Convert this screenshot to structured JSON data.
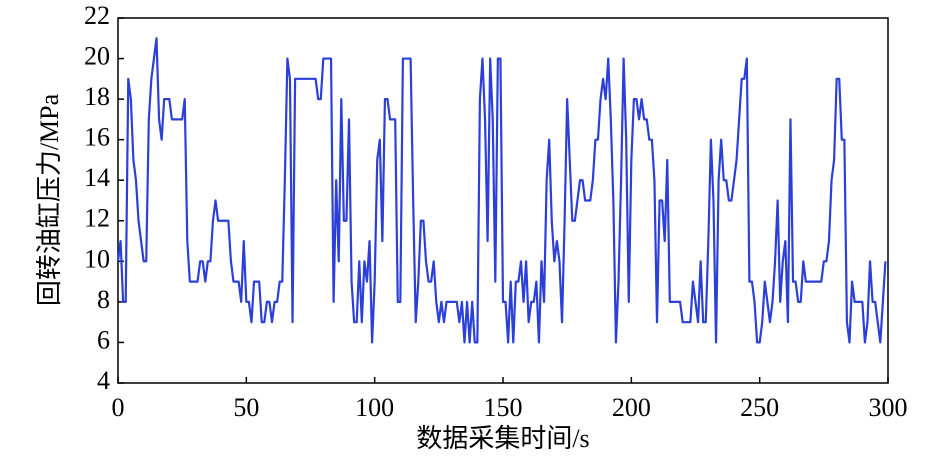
{
  "chart_data": {
    "type": "line",
    "xlabel": "数据采集时间/s",
    "ylabel": "回转油缸压力/MPa",
    "x": [
      0,
      1,
      2,
      3,
      4,
      5,
      6,
      7,
      8,
      9,
      10,
      11,
      12,
      13,
      14,
      15,
      16,
      17,
      18,
      19,
      20,
      21,
      22,
      23,
      24,
      25,
      26,
      27,
      28,
      29,
      30,
      31,
      32,
      33,
      34,
      35,
      36,
      37,
      38,
      39,
      40,
      41,
      42,
      43,
      44,
      45,
      46,
      47,
      48,
      49,
      50,
      51,
      52,
      53,
      54,
      55,
      56,
      57,
      58,
      59,
      60,
      61,
      62,
      63,
      64,
      65,
      66,
      67,
      68,
      69,
      70,
      71,
      72,
      73,
      74,
      75,
      76,
      77,
      78,
      79,
      80,
      81,
      82,
      83,
      84,
      85,
      86,
      87,
      88,
      89,
      90,
      91,
      92,
      93,
      94,
      95,
      96,
      97,
      98,
      99,
      100,
      101,
      102,
      103,
      104,
      105,
      106,
      107,
      108,
      109,
      110,
      111,
      112,
      113,
      114,
      115,
      116,
      117,
      118,
      119,
      120,
      121,
      122,
      123,
      124,
      125,
      126,
      127,
      128,
      129,
      130,
      131,
      132,
      133,
      134,
      135,
      136,
      137,
      138,
      139,
      140,
      141,
      142,
      143,
      144,
      145,
      146,
      147,
      148,
      149,
      150,
      151,
      152,
      153,
      154,
      155,
      156,
      157,
      158,
      159,
      160,
      161,
      162,
      163,
      164,
      165,
      166,
      167,
      168,
      169,
      170,
      171,
      172,
      173,
      174,
      175,
      176,
      177,
      178,
      179,
      180,
      181,
      182,
      183,
      184,
      185,
      186,
      187,
      188,
      189,
      190,
      191,
      192,
      193,
      194,
      195,
      196,
      197,
      198,
      199,
      200,
      201,
      202,
      203,
      204,
      205,
      206,
      207,
      208,
      209,
      210,
      211,
      212,
      213,
      214,
      215,
      216,
      217,
      218,
      219,
      220,
      221,
      222,
      223,
      224,
      225,
      226,
      227,
      228,
      229,
      230,
      231,
      232,
      233,
      234,
      235,
      236,
      237,
      238,
      239,
      240,
      241,
      242,
      243,
      244,
      245,
      246,
      247,
      248,
      249,
      250,
      251,
      252,
      253,
      254,
      255,
      256,
      257,
      258,
      259,
      260,
      261,
      262,
      263,
      264,
      265,
      266,
      267,
      268,
      269,
      270,
      271,
      272,
      273,
      274,
      275,
      276,
      277,
      278,
      279,
      280,
      281,
      282,
      283,
      284,
      285,
      286,
      287,
      288,
      289,
      290,
      291,
      292,
      293,
      294,
      295,
      296,
      297,
      298,
      299
    ],
    "series": [
      {
        "color": "#2b3fd9",
        "values": [
          10,
          11,
          8,
          8,
          19,
          18,
          15,
          14,
          12,
          11,
          10,
          10,
          17,
          19,
          20,
          21,
          17,
          16,
          18,
          18,
          18,
          17,
          17,
          17,
          17,
          17,
          18,
          11,
          9,
          9,
          9,
          9,
          10,
          10,
          9,
          10,
          10,
          12,
          13,
          12,
          12,
          12,
          12,
          12,
          10,
          9,
          9,
          9,
          8,
          11,
          8,
          8,
          7,
          9,
          9,
          9,
          7,
          7,
          8,
          8,
          7,
          8,
          8,
          9,
          9,
          14,
          20,
          19,
          7,
          19,
          19,
          19,
          19,
          19,
          19,
          19,
          19,
          19,
          18,
          18,
          20,
          20,
          20,
          20,
          8,
          14,
          10,
          18,
          12,
          12,
          17,
          9,
          7,
          7,
          10,
          7,
          10,
          9,
          11,
          6,
          9,
          15,
          16,
          11,
          18,
          18,
          17,
          17,
          17,
          8,
          8,
          20,
          20,
          20,
          20,
          13,
          7,
          9,
          12,
          12,
          10,
          9,
          9,
          10,
          8,
          7,
          8,
          7,
          8,
          8,
          8,
          8,
          8,
          7,
          8,
          6,
          8,
          6,
          8,
          6,
          6,
          18,
          20,
          17,
          11,
          20,
          17,
          9,
          20,
          20,
          8,
          8,
          6,
          9,
          6,
          9,
          9,
          10,
          8,
          10,
          7,
          8,
          8,
          9,
          6,
          10,
          8,
          14,
          16,
          12,
          10,
          11,
          10,
          7,
          12,
          18,
          15,
          12,
          12,
          13,
          14,
          14,
          13,
          13,
          13,
          14,
          16,
          16,
          18,
          19,
          18,
          20,
          17,
          13,
          6,
          9,
          14,
          20,
          16,
          8,
          15,
          18,
          18,
          17,
          18,
          17,
          17,
          16,
          16,
          14,
          7,
          13,
          13,
          11,
          15,
          8,
          8,
          8,
          8,
          8,
          7,
          7,
          7,
          7,
          9,
          8,
          7,
          10,
          7,
          7,
          11,
          16,
          13,
          6,
          14,
          16,
          14,
          14,
          13,
          13,
          14,
          15,
          17,
          19,
          19,
          20,
          9,
          9,
          8,
          6,
          6,
          7,
          9,
          8,
          7,
          8,
          10,
          13,
          8,
          10,
          11,
          7,
          17,
          9,
          9,
          8,
          8,
          10,
          9,
          9,
          9,
          9,
          9,
          9,
          9,
          10,
          10,
          11,
          14,
          15,
          19,
          19,
          16,
          16,
          7,
          6,
          9,
          8,
          8,
          8,
          8,
          6,
          7,
          10,
          8,
          8,
          7,
          6,
          8,
          10
        ]
      }
    ],
    "xlim": [
      0,
      300
    ],
    "xticks": [
      0,
      50,
      100,
      150,
      200,
      250,
      300
    ],
    "ylim": [
      4,
      22
    ],
    "yticks": [
      4,
      6,
      8,
      10,
      12,
      14,
      16,
      18,
      20,
      22
    ]
  }
}
